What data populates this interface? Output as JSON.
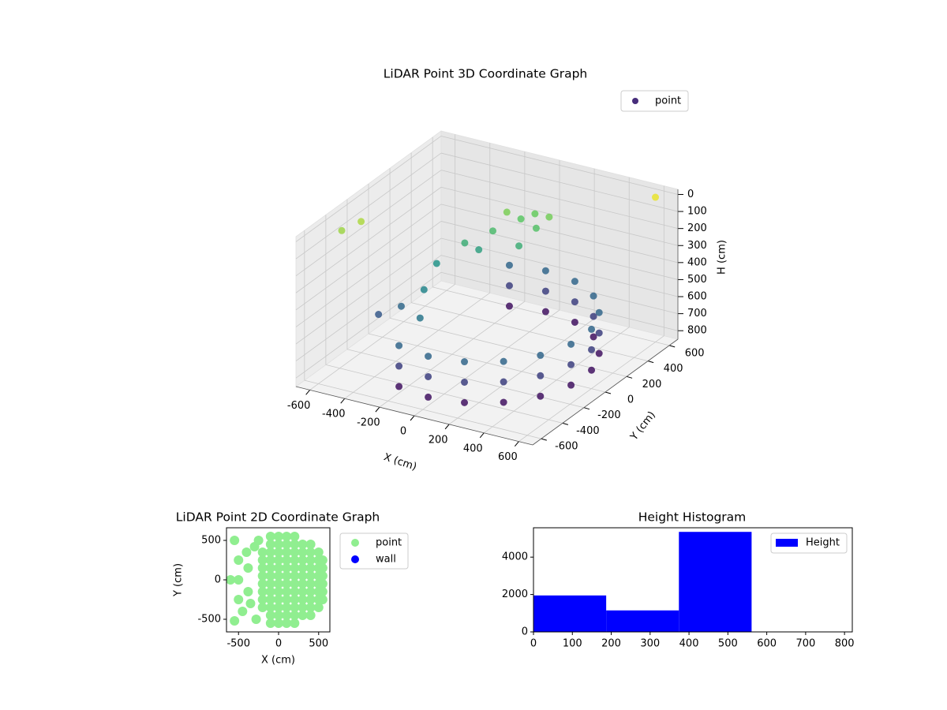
{
  "chart_data": [
    {
      "type": "scatter3d",
      "title": "LiDAR Point 3D Coordinate Graph",
      "xlabel": "X (cm)",
      "ylabel": "Y (cm)",
      "zlabel": "H (cm)",
      "colormap": "viridis",
      "legend": "upper right",
      "grid": true,
      "xlim": [
        -680,
        680
      ],
      "ylim": [
        -680,
        680
      ],
      "zlim": [
        850,
        -30
      ],
      "xticks": [
        -600,
        -400,
        -200,
        0,
        200,
        400,
        600
      ],
      "yticks": [
        -600,
        -400,
        -200,
        0,
        200,
        400,
        600
      ],
      "zticks": [
        0,
        100,
        200,
        300,
        400,
        500,
        600,
        700,
        800
      ],
      "series": [
        {
          "name": "point",
          "color": "#472d7b",
          "x": [
            -188,
            -188,
            -188,
            0,
            0,
            0,
            188,
            188,
            188,
            354,
            354,
            354,
            476,
            476,
            476,
            542,
            542,
            542,
            542,
            542,
            542,
            476,
            476,
            476,
            354,
            354,
            354,
            188,
            188,
            188,
            0,
            0,
            0,
            -188,
            -188,
            -188,
            -100,
            -50,
            0,
            50,
            -150,
            100,
            0,
            -200,
            -300,
            -400,
            -200,
            -500,
            -350,
            -250,
            600,
            -650,
            -600
          ],
          "y": [
            -517,
            -517,
            -517,
            -550,
            -550,
            -550,
            -517,
            -517,
            -517,
            -421,
            -421,
            -421,
            -275,
            -275,
            -275,
            -96,
            -96,
            -96,
            96,
            96,
            96,
            275,
            275,
            275,
            421,
            421,
            421,
            517,
            517,
            517,
            550,
            550,
            550,
            517,
            517,
            517,
            350,
            400,
            450,
            380,
            300,
            420,
            300,
            250,
            -100,
            -150,
            -300,
            -200,
            100,
            200,
            600,
            -300,
            -200
          ],
          "z": [
            560,
            680,
            800,
            560,
            680,
            800,
            560,
            680,
            800,
            560,
            680,
            800,
            560,
            680,
            800,
            560,
            680,
            800,
            560,
            680,
            800,
            560,
            680,
            800,
            560,
            680,
            800,
            560,
            680,
            800,
            560,
            680,
            800,
            560,
            680,
            800,
            150,
            200,
            180,
            220,
            250,
            160,
            300,
            350,
            450,
            550,
            500,
            600,
            400,
            300,
            0,
            100,
            80
          ]
        }
      ]
    },
    {
      "type": "scatter",
      "title": "LiDAR Point 2D Coordinate Graph",
      "xlabel": "X (cm)",
      "ylabel": "Y (cm)",
      "legend": "outside right",
      "xlim": [
        -650,
        640
      ],
      "ylim": [
        -660,
        660
      ],
      "xticks": [
        -500,
        0,
        500
      ],
      "yticks": [
        -500,
        0,
        500
      ],
      "series": [
        {
          "name": "point",
          "color": "#90ee90",
          "x": [
            -200,
            -200,
            -200,
            -200,
            -200,
            -200,
            -200,
            -200,
            -100,
            -100,
            -100,
            -100,
            -100,
            -100,
            -100,
            -100,
            -100,
            -100,
            -100,
            -100,
            0,
            0,
            0,
            0,
            0,
            0,
            0,
            0,
            0,
            0,
            0,
            0,
            100,
            100,
            100,
            100,
            100,
            100,
            100,
            100,
            100,
            100,
            100,
            100,
            200,
            200,
            200,
            200,
            200,
            200,
            200,
            200,
            200,
            200,
            200,
            200,
            300,
            300,
            300,
            300,
            300,
            300,
            300,
            300,
            300,
            300,
            400,
            400,
            400,
            400,
            400,
            400,
            400,
            400,
            400,
            400,
            500,
            500,
            500,
            500,
            500,
            500,
            500,
            500,
            550,
            550,
            550,
            550,
            550,
            550,
            -550,
            -550,
            -600,
            -500,
            -500,
            -500,
            -400,
            -450,
            -300,
            -350,
            -250,
            -280,
            -380,
            -380
          ],
          "y": [
            -350,
            -250,
            -150,
            -50,
            50,
            150,
            250,
            350,
            -550,
            -450,
            -350,
            -250,
            -150,
            -50,
            50,
            150,
            250,
            350,
            450,
            550,
            -550,
            -450,
            -350,
            -250,
            -150,
            -50,
            50,
            150,
            250,
            350,
            450,
            550,
            -550,
            -450,
            -350,
            -250,
            -150,
            -50,
            50,
            150,
            250,
            350,
            450,
            550,
            -550,
            -450,
            -350,
            -250,
            -150,
            -50,
            50,
            150,
            250,
            350,
            450,
            550,
            -450,
            -350,
            -250,
            -150,
            -50,
            50,
            150,
            250,
            350,
            450,
            -450,
            -350,
            -250,
            -150,
            -50,
            50,
            150,
            250,
            350,
            450,
            -350,
            -250,
            -150,
            -50,
            50,
            150,
            250,
            350,
            -250,
            -150,
            -50,
            50,
            150,
            250,
            500,
            -520,
            0,
            0,
            250,
            -250,
            350,
            -400,
            420,
            -300,
            500,
            -500,
            150,
            -150
          ]
        },
        {
          "name": "wall",
          "color": "#0000ff"
        }
      ]
    },
    {
      "type": "histogram",
      "title": "Height Histogram",
      "legend": "upper right",
      "bins": [
        0,
        187,
        374,
        561
      ],
      "series": [
        {
          "name": "Height",
          "color": "#0000ff",
          "values": [
            1950,
            1150,
            5350
          ]
        }
      ],
      "xlim": [
        0,
        820
      ],
      "ylim": [
        0,
        5570
      ],
      "xticks": [
        0,
        100,
        200,
        300,
        400,
        500,
        600,
        700,
        800
      ],
      "yticks": [
        0,
        2000,
        4000
      ]
    }
  ]
}
